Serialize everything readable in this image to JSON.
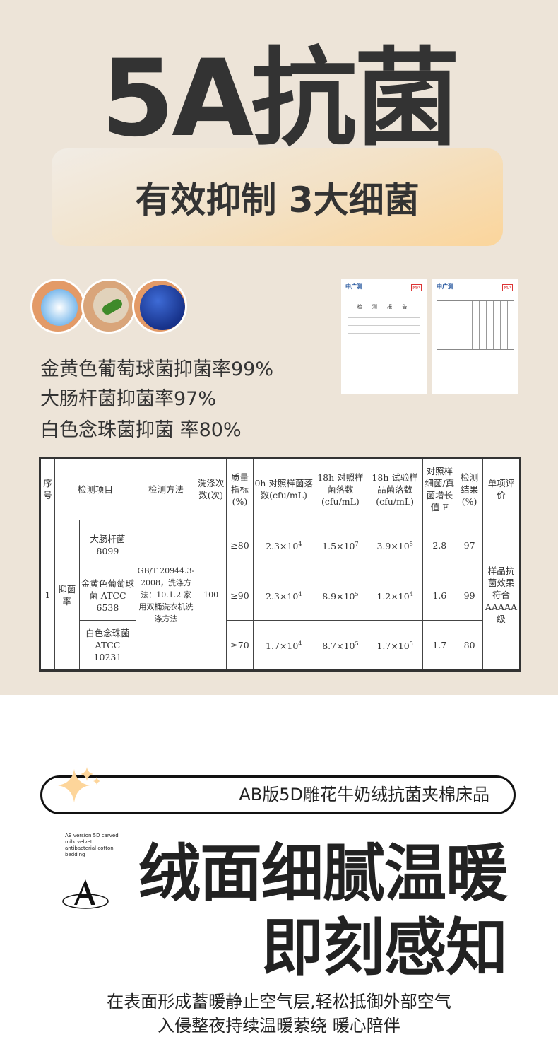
{
  "hero": {
    "title": "5A抗菌",
    "subtitle": "有效抑制 3大细菌"
  },
  "stats": [
    "金黄色葡萄球菌抑菌率99%",
    "大肠杆菌抑菌率97%",
    "白色念珠菌抑菌 率80%"
  ],
  "certificates": [
    {
      "logo": "中广测",
      "badge": "MA",
      "title": "检 测 报 告"
    },
    {
      "logo": "中广测",
      "badge": "MA",
      "title": ""
    }
  ],
  "table": {
    "headers": [
      "序号",
      "检测项目",
      "检测方法",
      "洗涤次数(次)",
      "质量指标(%)",
      "0h 对照样菌落数(cfu/mL)",
      "18h 对照样菌落数(cfu/mL)",
      "18h 试验样品菌落数(cfu/mL)",
      "对照样细菌/真菌增长值 F",
      "检测结果(%)",
      "单项评价"
    ],
    "index": "1",
    "category": "抑菌率",
    "method": "GB/T 20944.3-2008，洗涤方法：10.1.2 家用双桶洗衣机洗涤方法",
    "washes": "100",
    "verdict": "样品抗菌效果符合AAAAA 级",
    "rows": [
      {
        "item": "大肠杆菌 8099",
        "index": "≥80",
        "c0": {
          "m": "2.3×10",
          "e": "4"
        },
        "c18": {
          "m": "1.5×10",
          "e": "7"
        },
        "t18": {
          "m": "3.9×10",
          "e": "5"
        },
        "f": "2.8",
        "result": "97"
      },
      {
        "item": "金黄色葡萄球菌 ATCC 6538",
        "index": "≥90",
        "c0": {
          "m": "2.3×10",
          "e": "4"
        },
        "c18": {
          "m": "8.9×10",
          "e": "5"
        },
        "t18": {
          "m": "1.2×10",
          "e": "4"
        },
        "f": "1.6",
        "result": "99"
      },
      {
        "item": "白色念珠菌 ATCC 10231",
        "index": "≥70",
        "c0": {
          "m": "1.7×10",
          "e": "4"
        },
        "c18": {
          "m": "8.7×10",
          "e": "5"
        },
        "t18": {
          "m": "1.7×10",
          "e": "5"
        },
        "f": "1.7",
        "result": "80"
      }
    ]
  },
  "product": {
    "pill": "AB版5D雕花牛奶绒抗菌夹棉床品",
    "english": "AB version 5D carved milk velvet antibacterial cotton bedding",
    "logo_letter": "A"
  },
  "headline": {
    "line1": "绒面细腻温暖",
    "line2": "即刻感知"
  },
  "footer": {
    "line1": "在表面形成蓄暖静止空气层,轻松抵御外部空气",
    "line2": "入侵整夜持续温暖萦绕 暖心陪伴"
  },
  "colors": {
    "background_top": "#ede4d8",
    "accent_gradient_end": "#fbd59b",
    "star": "#fdd59a",
    "text": "#333333"
  }
}
